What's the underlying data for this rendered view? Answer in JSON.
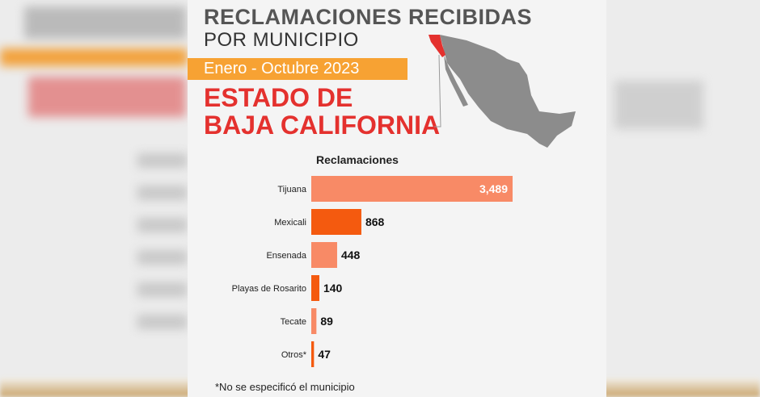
{
  "header": {
    "title_line1": "RECLAMACIONES RECIBIDAS",
    "title_line2": "POR MUNICIPIO",
    "period": "Enero - Octubre 2023",
    "state_line1": "ESTADO DE",
    "state_line2": "BAJA CALIFORNIA"
  },
  "footnote": "*No se especificó el municipio",
  "colors": {
    "light_bar": "#f88a66",
    "dark_bar": "#f45a0f",
    "accent_red": "#e4312e",
    "period_band": "#f7a233"
  },
  "chart_data": {
    "type": "bar",
    "orientation": "horizontal",
    "title": "Reclamaciones",
    "categories": [
      "Tijuana",
      "Mexicali",
      "Ensenada",
      "Playas de Rosarito",
      "Tecate",
      "Otros*"
    ],
    "values": [
      3489,
      868,
      448,
      140,
      89,
      47
    ],
    "value_labels": [
      "3,489",
      "868",
      "448",
      "140",
      "89",
      "47"
    ],
    "bar_colors": [
      "#f88a66",
      "#f45a0f",
      "#f88a66",
      "#f45a0f",
      "#f88a66",
      "#f45a0f"
    ],
    "xlim": [
      0,
      3489
    ],
    "grid": false
  }
}
